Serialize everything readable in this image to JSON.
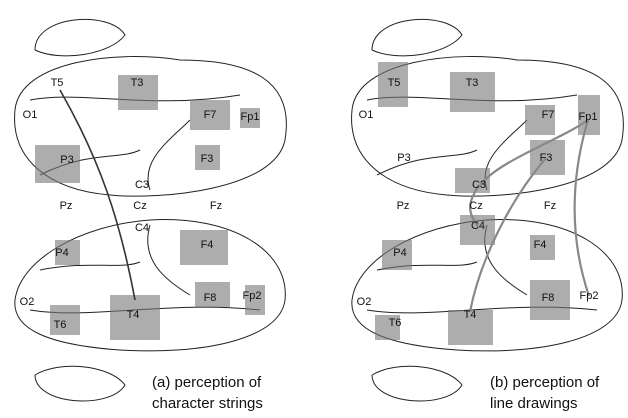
{
  "panels": [
    {
      "caption": [
        "(a) perception of",
        "character strings"
      ],
      "electrodes": [
        "O1",
        "T5",
        "T3",
        "F7",
        "Fp1",
        "P3",
        "F3",
        "C3",
        "Pz",
        "Cz",
        "Fz",
        "C4",
        "F4",
        "P4",
        "F8",
        "Fp2",
        "O2",
        "T6",
        "T4"
      ]
    },
    {
      "caption": [
        "(b) perception of",
        "line drawings"
      ],
      "electrodes": [
        "O1",
        "T5",
        "T3",
        "F7",
        "Fp1",
        "P3",
        "F3",
        "C3",
        "Pz",
        "Cz",
        "Fz",
        "C4",
        "F4",
        "P4",
        "F8",
        "Fp2",
        "O2",
        "T6",
        "T4"
      ]
    }
  ]
}
